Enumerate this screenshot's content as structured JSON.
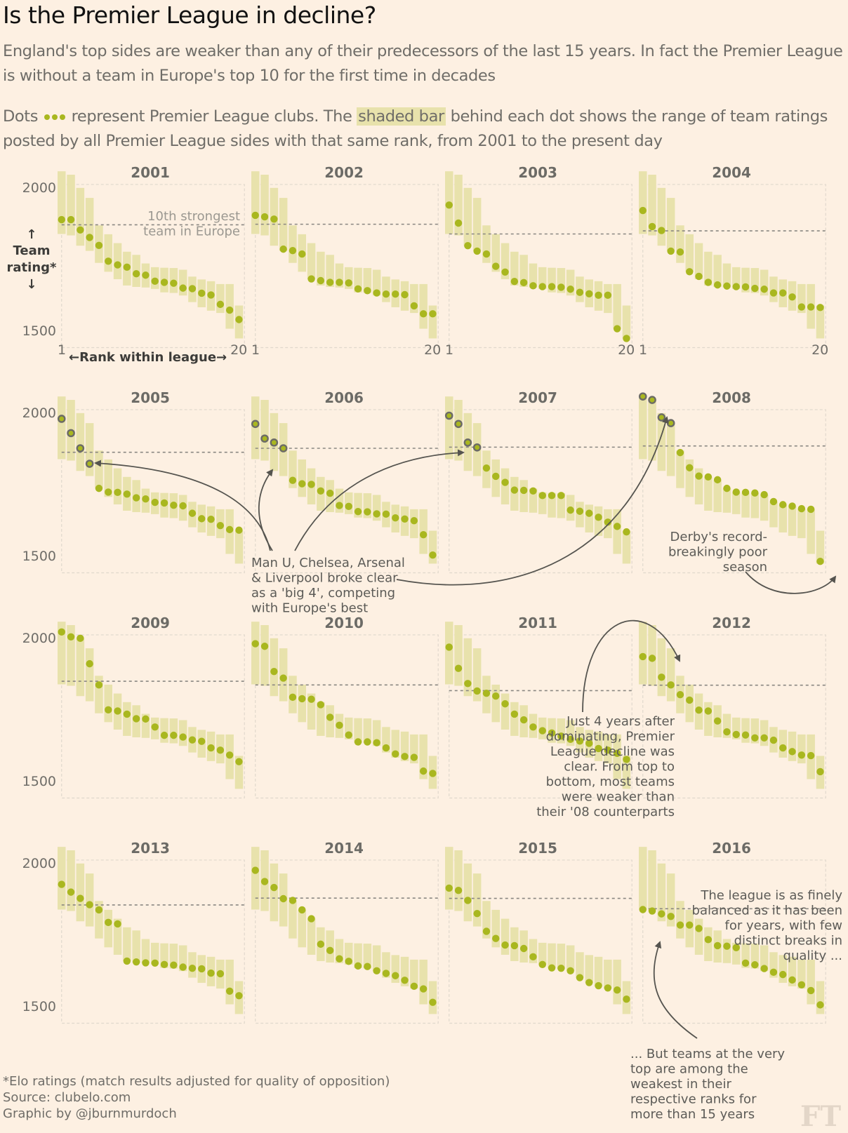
{
  "header": {
    "title": "Is the Premier League in decline?",
    "subtitle": "England's top sides are weaker than any of their predecessors of the last 15 years. In fact the Premier League is without a team in Europe's top 10 for the first time in decades",
    "explainer_before": "Dots",
    "explainer_mid": "represent Premier League clubs. The",
    "explainer_shaded": "shaded bar",
    "explainer_after": "behind each dot shows the range of team ratings posted by all Premier League sides with that same rank, from 2001 to the present day"
  },
  "colors": {
    "background": "#fdf0e2",
    "dot": "#a9b71f",
    "dot_outline_big4": "#6c6b66",
    "bar": "#e8e2ac",
    "dashed_line": "#8a8782",
    "text": "#5c5b57"
  },
  "chart_data": {
    "type": "scatter",
    "title": "Is the Premier League in decline?",
    "xlabel": "Rank within league",
    "ylabel": "Team rating*",
    "x_ticks": [
      "1",
      "20"
    ],
    "y_ticks": [
      2000,
      1500
    ],
    "ylim": [
      1470,
      2060
    ],
    "grid": false,
    "legend": "none",
    "rank_range_bars": {
      "description": "Range of ratings for each rank across all seasons 2001-2016",
      "ranks": [
        1,
        2,
        3,
        4,
        5,
        6,
        7,
        8,
        9,
        10,
        11,
        12,
        13,
        14,
        15,
        16,
        17,
        18,
        19,
        20
      ],
      "max": [
        2056,
        2044,
        1998,
        1963,
        1867,
        1836,
        1805,
        1775,
        1764,
        1734,
        1721,
        1719,
        1718,
        1712,
        1688,
        1678,
        1672,
        1662,
        1662,
        1587
      ],
      "min": [
        1837,
        1832,
        1796,
        1778,
        1736,
        1705,
        1679,
        1657,
        1652,
        1650,
        1645,
        1633,
        1631,
        1622,
        1599,
        1581,
        1569,
        1561,
        1506,
        1472
      ]
    },
    "reference_line_label": "10th strongest team in Europe",
    "panels": [
      {
        "year": "2001",
        "europe_10th": 1869,
        "big4_highlight": false,
        "ratings": [
          1887,
          1887,
          1851,
          1825,
          1797,
          1742,
          1729,
          1721,
          1698,
          1693,
          1672,
          1668,
          1665,
          1648,
          1646,
          1630,
          1624,
          1591,
          1571,
          1538
        ]
      },
      {
        "year": "2002",
        "europe_10th": 1871,
        "big4_highlight": false,
        "ratings": [
          1902,
          1897,
          1889,
          1784,
          1779,
          1767,
          1680,
          1674,
          1668,
          1668,
          1666,
          1645,
          1639,
          1631,
          1627,
          1627,
          1625,
          1586,
          1558,
          1558
        ]
      },
      {
        "year": "2003",
        "europe_10th": 1837,
        "big4_highlight": false,
        "ratings": [
          1938,
          1875,
          1796,
          1777,
          1767,
          1724,
          1704,
          1671,
          1667,
          1656,
          1653,
          1653,
          1651,
          1644,
          1633,
          1628,
          1623,
          1623,
          1506,
          1472
        ]
      },
      {
        "year": "2004",
        "europe_10th": 1848,
        "big4_highlight": false,
        "ratings": [
          1919,
          1863,
          1849,
          1777,
          1774,
          1705,
          1689,
          1668,
          1659,
          1655,
          1653,
          1652,
          1647,
          1644,
          1631,
          1631,
          1617,
          1582,
          1582,
          1580
        ]
      },
      {
        "year": "2005",
        "europe_10th": 1861,
        "big4_highlight": true,
        "ratings": [
          1978,
          1928,
          1875,
          1821,
          1735,
          1722,
          1721,
          1715,
          1702,
          1698,
          1686,
          1684,
          1676,
          1674,
          1648,
          1629,
          1627,
          1605,
          1591,
          1589
        ]
      },
      {
        "year": "2006",
        "europe_10th": 1875,
        "big4_highlight": true,
        "ratings": [
          1960,
          1909,
          1895,
          1875,
          1763,
          1751,
          1749,
          1726,
          1718,
          1675,
          1672,
          1654,
          1653,
          1646,
          1645,
          1632,
          1628,
          1622,
          1573,
          1502
        ]
      },
      {
        "year": "2007",
        "europe_10th": 1879,
        "big4_highlight": true,
        "ratings": [
          1989,
          1960,
          1895,
          1878,
          1806,
          1777,
          1756,
          1729,
          1728,
          1726,
          1710,
          1710,
          1710,
          1659,
          1655,
          1648,
          1634,
          1617,
          1602,
          1583
        ]
      },
      {
        "year": "2008",
        "europe_10th": 1883,
        "big4_highlight": true,
        "ratings": [
          2056,
          2044,
          1983,
          1963,
          1860,
          1807,
          1778,
          1775,
          1765,
          1735,
          1722,
          1721,
          1719,
          1713,
          1689,
          1678,
          1673,
          1664,
          1662,
          1480
        ]
      },
      {
        "year": "2009",
        "europe_10th": 1848,
        "big4_highlight": false,
        "ratings": [
          2020,
          2003,
          1998,
          1909,
          1835,
          1748,
          1744,
          1733,
          1717,
          1716,
          1688,
          1659,
          1659,
          1653,
          1643,
          1638,
          1615,
          1607,
          1590,
          1567
        ]
      },
      {
        "year": "2010",
        "europe_10th": 1835,
        "big4_highlight": false,
        "ratings": [
          1979,
          1970,
          1882,
          1859,
          1792,
          1787,
          1785,
          1766,
          1722,
          1694,
          1660,
          1636,
          1636,
          1633,
          1615,
          1594,
          1585,
          1582,
          1534,
          1526
        ]
      },
      {
        "year": "2011",
        "europe_10th": 1815,
        "big4_highlight": false,
        "ratings": [
          1967,
          1893,
          1840,
          1814,
          1806,
          1796,
          1769,
          1733,
          1713,
          1688,
          1675,
          1667,
          1656,
          1645,
          1639,
          1631,
          1613,
          1607,
          1596,
          1575
        ]
      },
      {
        "year": "2012",
        "europe_10th": 1834,
        "big4_highlight": false,
        "ratings": [
          1934,
          1928,
          1862,
          1835,
          1801,
          1782,
          1747,
          1744,
          1709,
          1671,
          1662,
          1660,
          1650,
          1650,
          1642,
          1615,
          1602,
          1590,
          1588,
          1532
        ]
      },
      {
        "year": "2013",
        "europe_10th": 1853,
        "big4_highlight": false,
        "ratings": [
          1925,
          1898,
          1876,
          1854,
          1836,
          1792,
          1787,
          1657,
          1654,
          1651,
          1650,
          1645,
          1643,
          1636,
          1632,
          1630,
          1615,
          1613,
          1552,
          1536
        ]
      },
      {
        "year": "2014",
        "europe_10th": 1877,
        "big4_highlight": false,
        "ratings": [
          1974,
          1935,
          1914,
          1875,
          1869,
          1836,
          1805,
          1716,
          1694,
          1665,
          1656,
          1640,
          1638,
          1623,
          1614,
          1606,
          1590,
          1569,
          1560,
          1513
        ]
      },
      {
        "year": "2015",
        "europe_10th": 1876,
        "big4_highlight": false,
        "ratings": [
          1912,
          1904,
          1869,
          1823,
          1761,
          1736,
          1713,
          1711,
          1701,
          1672,
          1645,
          1633,
          1632,
          1623,
          1599,
          1582,
          1571,
          1563,
          1556,
          1524
        ]
      },
      {
        "year": "2016",
        "europe_10th": 1840,
        "big4_highlight": false,
        "ratings": [
          1837,
          1832,
          1822,
          1813,
          1783,
          1783,
          1771,
          1732,
          1711,
          1709,
          1704,
          1650,
          1644,
          1631,
          1618,
          1610,
          1591,
          1574,
          1554,
          1504
        ]
      }
    ],
    "annotations": [
      {
        "id": "europe",
        "lines": [
          "10th strongest",
          "team in Europe"
        ]
      },
      {
        "id": "big4",
        "lines": [
          "Man U, Chelsea, Arsenal",
          "& Liverpool broke clear",
          "as a 'big 4', competing",
          "with Europe's best"
        ]
      },
      {
        "id": "derby",
        "lines": [
          "Derby's record-",
          "breakingly poor",
          "season"
        ]
      },
      {
        "id": "decline",
        "lines": [
          "Just 4 years after",
          "dominating, Premier",
          "League decline was",
          "clear. From top to",
          "bottom, most teams",
          "were weaker than",
          "their '08 counterparts"
        ]
      },
      {
        "id": "balanced",
        "lines": [
          "The league is as finely",
          "balanced as it has been",
          "for years, with few",
          "distinct breaks in",
          "quality ..."
        ]
      },
      {
        "id": "weakest",
        "lines": [
          "... But teams at the very",
          "top are among the",
          "weakest in their",
          "respective ranks for",
          "more than 15 years"
        ]
      }
    ],
    "axis_labels": {
      "y_arrow_up": "↑",
      "y_title_1": "Team",
      "y_title_2": "rating*",
      "y_arrow_down": "↓",
      "x_title": "←Rank within league→",
      "x_first": "1",
      "x_last": "20"
    }
  },
  "footer": {
    "note": "*Elo ratings (match results adjusted for quality of opposition)",
    "source": "Source: clubelo.com",
    "credit": "Graphic by @jburnmurdoch",
    "logo": "FT"
  }
}
